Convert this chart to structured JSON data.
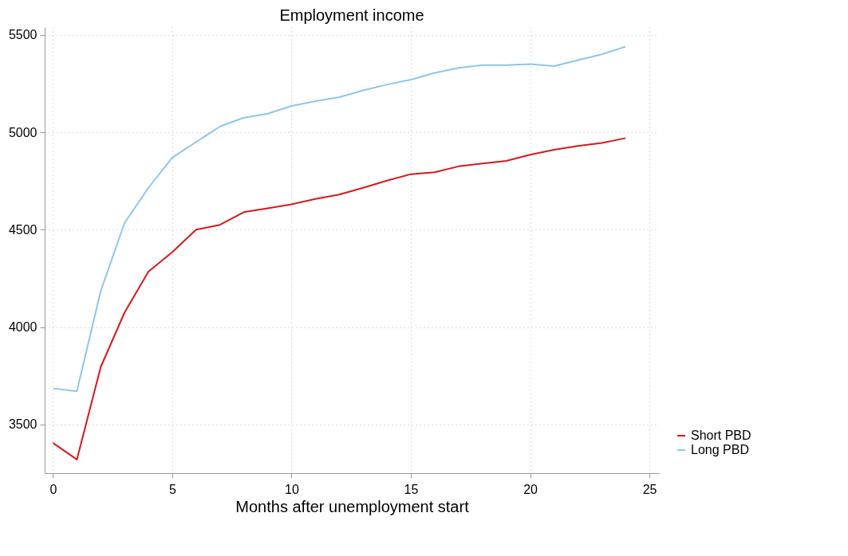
{
  "chart_data": {
    "type": "line",
    "title": "Employment income",
    "xlabel": "Months after unemployment start",
    "x": [
      0,
      1,
      2,
      3,
      4,
      5,
      6,
      7,
      8,
      9,
      10,
      11,
      12,
      13,
      14,
      15,
      16,
      17,
      18,
      19,
      20,
      21,
      22,
      23,
      24
    ],
    "series": [
      {
        "name": "Short PBD",
        "color": "#d7191c",
        "values": [
          3405,
          3320,
          3795,
          4075,
          4285,
          4385,
          4500,
          4525,
          4590,
          4610,
          4630,
          4658,
          4680,
          4715,
          4752,
          4785,
          4795,
          4825,
          4840,
          4853,
          4885,
          4910,
          4930,
          4945,
          4970
        ]
      },
      {
        "name": "Long PBD",
        "color": "#8ec6ec",
        "values": [
          3685,
          3670,
          4185,
          4535,
          4715,
          4870,
          4950,
          5030,
          5075,
          5095,
          5135,
          5160,
          5180,
          5215,
          5245,
          5270,
          5305,
          5330,
          5345,
          5345,
          5350,
          5340,
          5370,
          5400,
          5440
        ]
      }
    ],
    "xlim": [
      -0.35,
      25.4
    ],
    "xticks": [
      0,
      5,
      10,
      15,
      20,
      25
    ],
    "ylim": [
      3250,
      5540
    ],
    "yticks": [
      3500,
      4000,
      4500,
      5000,
      5500
    ],
    "grid": true,
    "legend": "right",
    "line_style": "solid",
    "marker": "none"
  }
}
